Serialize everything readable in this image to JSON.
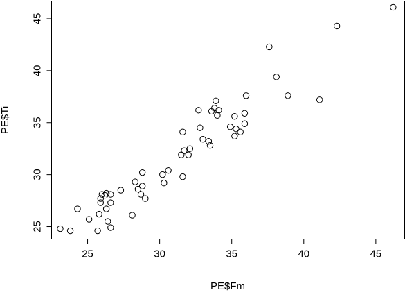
{
  "chart_data": {
    "type": "scatter",
    "title": "",
    "xlabel": "PE$Fm",
    "ylabel": "PE$Ti",
    "xlim": [
      22.5,
      47.0
    ],
    "ylim": [
      23.8,
      46.7
    ],
    "xticks": [
      25,
      30,
      35,
      40,
      45
    ],
    "yticks": [
      25,
      30,
      35,
      40,
      45
    ],
    "grid": false,
    "legend": "none",
    "marker": "open-circle",
    "colors": {
      "axis": "#000000",
      "point": "#000000",
      "background": "#ffffff"
    },
    "points": [
      {
        "x": 23.1,
        "y": 24.8
      },
      {
        "x": 23.8,
        "y": 24.6
      },
      {
        "x": 24.3,
        "y": 26.7
      },
      {
        "x": 25.1,
        "y": 25.7
      },
      {
        "x": 25.7,
        "y": 24.6
      },
      {
        "x": 25.8,
        "y": 26.2
      },
      {
        "x": 25.9,
        "y": 27.3
      },
      {
        "x": 25.9,
        "y": 27.7
      },
      {
        "x": 26.0,
        "y": 28.1
      },
      {
        "x": 26.2,
        "y": 28.0
      },
      {
        "x": 26.3,
        "y": 28.2
      },
      {
        "x": 26.3,
        "y": 26.7
      },
      {
        "x": 26.4,
        "y": 25.5
      },
      {
        "x": 26.6,
        "y": 28.1
      },
      {
        "x": 26.6,
        "y": 27.3
      },
      {
        "x": 26.6,
        "y": 24.9
      },
      {
        "x": 27.3,
        "y": 28.5
      },
      {
        "x": 28.1,
        "y": 26.1
      },
      {
        "x": 28.3,
        "y": 29.3
      },
      {
        "x": 28.5,
        "y": 28.6
      },
      {
        "x": 28.7,
        "y": 28.1
      },
      {
        "x": 28.8,
        "y": 28.9
      },
      {
        "x": 28.8,
        "y": 30.2
      },
      {
        "x": 29.0,
        "y": 27.7
      },
      {
        "x": 30.2,
        "y": 30.0
      },
      {
        "x": 30.3,
        "y": 29.2
      },
      {
        "x": 30.6,
        "y": 30.4
      },
      {
        "x": 31.5,
        "y": 31.9
      },
      {
        "x": 31.6,
        "y": 29.8
      },
      {
        "x": 31.6,
        "y": 34.1
      },
      {
        "x": 31.7,
        "y": 32.3
      },
      {
        "x": 32.0,
        "y": 31.9
      },
      {
        "x": 32.1,
        "y": 32.5
      },
      {
        "x": 32.7,
        "y": 36.2
      },
      {
        "x": 32.8,
        "y": 34.5
      },
      {
        "x": 33.0,
        "y": 33.4
      },
      {
        "x": 33.4,
        "y": 33.2
      },
      {
        "x": 33.5,
        "y": 32.8
      },
      {
        "x": 33.6,
        "y": 36.1
      },
      {
        "x": 33.8,
        "y": 36.4
      },
      {
        "x": 33.9,
        "y": 37.1
      },
      {
        "x": 34.0,
        "y": 35.7
      },
      {
        "x": 34.1,
        "y": 36.2
      },
      {
        "x": 34.9,
        "y": 34.6
      },
      {
        "x": 35.2,
        "y": 33.7
      },
      {
        "x": 35.2,
        "y": 35.6
      },
      {
        "x": 35.3,
        "y": 34.4
      },
      {
        "x": 35.6,
        "y": 34.1
      },
      {
        "x": 35.9,
        "y": 34.9
      },
      {
        "x": 35.9,
        "y": 35.9
      },
      {
        "x": 36.0,
        "y": 37.6
      },
      {
        "x": 37.6,
        "y": 42.3
      },
      {
        "x": 38.1,
        "y": 39.4
      },
      {
        "x": 38.9,
        "y": 37.6
      },
      {
        "x": 41.1,
        "y": 37.2
      },
      {
        "x": 42.3,
        "y": 44.3
      },
      {
        "x": 46.2,
        "y": 46.1
      }
    ]
  }
}
